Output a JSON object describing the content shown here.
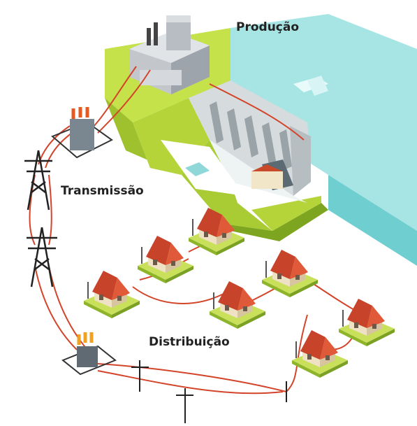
{
  "labels": {
    "production": "Produção",
    "transmission": "Transmissão",
    "distribution": "Distribuição"
  }
}
